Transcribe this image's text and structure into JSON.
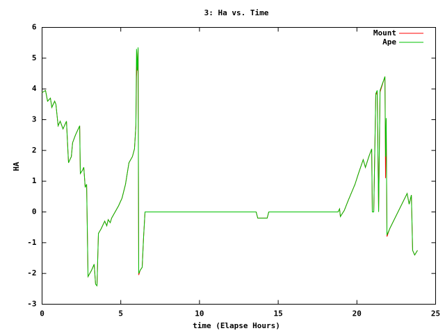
{
  "chart_data": {
    "type": "line",
    "title": "3: Ha vs. Time",
    "x_label": "time (Elapse Hours)",
    "y_label": "HA",
    "x": [
      0,
      0.22,
      0.35,
      0.53,
      0.62,
      0.8,
      0.88,
      1.02,
      1.15,
      1.33,
      1.55,
      1.68,
      1.86,
      1.94,
      2.12,
      2.39,
      2.43,
      2.56,
      2.65,
      2.74,
      2.83,
      2.92,
      3.14,
      3.31,
      3.4,
      3.49,
      3.58,
      3.75,
      3.98,
      4.11,
      4.2,
      4.33,
      4.42,
      4.64,
      4.86,
      5.08,
      5.3,
      5.52,
      5.74,
      5.87,
      5.96,
      6.0,
      6.05,
      6.1,
      6.14,
      6.23,
      6.36,
      6.45,
      6.54,
      13.6,
      13.7,
      14.3,
      14.4,
      18.8,
      18.9,
      18.95,
      19.2,
      19.43,
      19.88,
      20.1,
      20.4,
      20.54,
      20.76,
      20.94,
      20.98,
      21.07,
      21.2,
      21.29,
      21.38,
      21.47,
      21.78,
      21.82,
      21.86,
      21.91,
      22.08,
      23.19,
      23.32,
      23.46,
      23.54,
      23.67,
      23.85
    ],
    "series": [
      {
        "name": "Mount",
        "color": "#ff0000",
        "values": [
          3.88,
          3.95,
          3.6,
          3.7,
          3.4,
          3.6,
          3.5,
          2.8,
          2.95,
          2.7,
          2.95,
          1.6,
          1.8,
          2.25,
          2.5,
          2.8,
          1.25,
          1.35,
          1.45,
          0.8,
          0.9,
          -2.1,
          -1.9,
          -1.7,
          -2.35,
          -2.4,
          -0.7,
          -0.55,
          -0.3,
          -0.45,
          -0.25,
          -0.35,
          -0.2,
          0,
          0.2,
          0.45,
          0.9,
          1.6,
          1.8,
          2.05,
          2.8,
          4.4,
          4.9,
          5.3,
          -2.05,
          -1.9,
          -1.8,
          -0.8,
          0,
          0,
          -0.2,
          -0.2,
          0,
          0,
          0.1,
          -0.15,
          0.05,
          0.35,
          0.9,
          1.25,
          1.7,
          1.45,
          1.8,
          2.05,
          0,
          0,
          3.8,
          3.9,
          0,
          3.9,
          4.4,
          1.1,
          3.0,
          -0.8,
          -0.55,
          0.6,
          0.25,
          0.55,
          -1.25,
          -1.4,
          -1.25
        ]
      },
      {
        "name": "Ape",
        "color": "#00c000",
        "values": [
          3.88,
          3.95,
          3.6,
          3.7,
          3.4,
          3.6,
          3.5,
          2.8,
          2.95,
          2.7,
          2.95,
          1.6,
          1.8,
          2.25,
          2.5,
          2.8,
          1.25,
          1.35,
          1.45,
          0.8,
          0.9,
          -2.1,
          -1.9,
          -1.7,
          -2.35,
          -2.4,
          -0.7,
          -0.55,
          -0.3,
          -0.45,
          -0.25,
          -0.35,
          -0.2,
          0,
          0.2,
          0.45,
          0.9,
          1.6,
          1.8,
          2.05,
          2.8,
          5.3,
          4.6,
          5.35,
          -2.0,
          -1.9,
          -1.8,
          -0.8,
          0,
          0,
          -0.2,
          -0.2,
          0,
          0,
          0.1,
          -0.15,
          0.05,
          0.35,
          0.9,
          1.25,
          1.7,
          1.45,
          1.8,
          2.05,
          0,
          0,
          3.85,
          3.95,
          0,
          3.95,
          4.4,
          1.8,
          3.05,
          -0.75,
          -0.55,
          0.6,
          0.25,
          0.55,
          -1.25,
          -1.4,
          -1.25
        ]
      }
    ],
    "xlim": [
      0,
      25
    ],
    "xticks": [
      0,
      5,
      10,
      15,
      20,
      25
    ],
    "ylim": [
      -3,
      6
    ],
    "yticks": [
      -3,
      -2,
      -1,
      0,
      1,
      2,
      3,
      4,
      5,
      6
    ],
    "grid": false,
    "legend": "top-right"
  }
}
